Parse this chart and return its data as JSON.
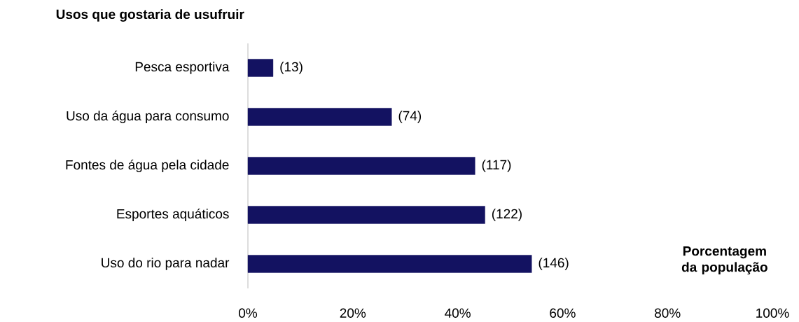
{
  "chart_data": {
    "type": "bar",
    "orientation": "horizontal",
    "title": "Usos que gostaria de usufruir",
    "xlabel": "Porcentagem da população",
    "categories": [
      "Pesca esportiva",
      "Uso da água para consumo",
      "Fontes de água pela cidade",
      "Esportes aquáticos",
      "Uso do rio para nadar"
    ],
    "values": [
      4.8,
      27.4,
      43.3,
      45.2,
      54.1
    ],
    "annotations": [
      {
        "text": "(13)",
        "x": 4.8,
        "y": "Pesca esportiva"
      },
      {
        "text": "(74)",
        "x": 27.4,
        "y": "Uso da água para consumo"
      },
      {
        "text": "(117)",
        "x": 43.3,
        "y": "Fontes de água pela cidade"
      },
      {
        "text": "(122)",
        "x": 45.2,
        "y": "Esportes aquáticos"
      },
      {
        "text": "(146)",
        "x": 54.1,
        "y": "Uso do rio para nadar"
      }
    ],
    "color": "#131261",
    "xlim": [
      0,
      100
    ],
    "xticks": [
      {
        "value": 0,
        "label": "0%"
      },
      {
        "value": 20,
        "label": "20%"
      },
      {
        "value": 40,
        "label": "40%"
      },
      {
        "value": 60,
        "label": "60%"
      },
      {
        "value": 80,
        "label": "80%"
      },
      {
        "value": 100,
        "label": "100%"
      }
    ],
    "grid": false
  }
}
